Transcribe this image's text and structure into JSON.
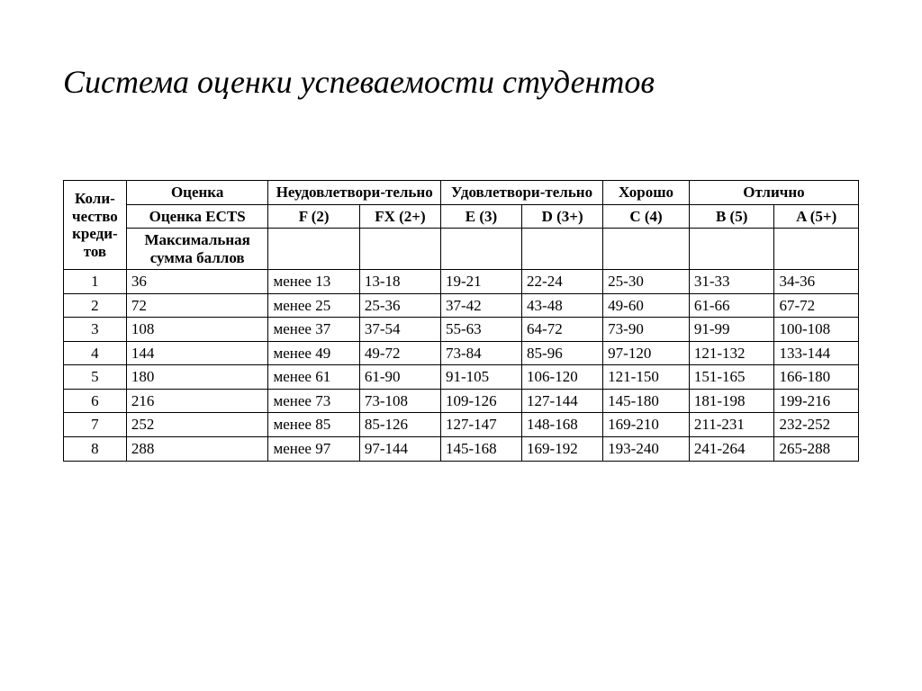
{
  "title": "Система оценки успеваемости студентов",
  "table": {
    "header": {
      "credits_label": "Коли-чество креди-тов",
      "grade_label": "Оценка",
      "unsatisfactory": "Неудовлетвори-тельно",
      "satisfactory": "Удовлетвори-тельно",
      "good": "Хорошо",
      "excellent": "Отлично",
      "ects_label": "Оценка ECTS",
      "f": "F (2)",
      "fx": "FX (2+)",
      "e": "E (3)",
      "d": "D (3+)",
      "c": "C (4)",
      "b": "B (5)",
      "a": "A (5+)",
      "max_points_label": "Максимальная сумма баллов"
    },
    "rows": [
      {
        "n": "1",
        "max": "36",
        "f": "менее 13",
        "fx": "13-18",
        "e": "19-21",
        "d": "22-24",
        "c": "25-30",
        "b": "31-33",
        "a": "34-36"
      },
      {
        "n": "2",
        "max": "72",
        "f": "менее 25",
        "fx": "25-36",
        "e": "37-42",
        "d": "43-48",
        "c": "49-60",
        "b": "61-66",
        "a": "67-72"
      },
      {
        "n": "3",
        "max": "108",
        "f": "менее 37",
        "fx": "37-54",
        "e": "55-63",
        "d": "64-72",
        "c": "73-90",
        "b": "91-99",
        "a": "100-108"
      },
      {
        "n": "4",
        "max": "144",
        "f": "менее 49",
        "fx": "49-72",
        "e": "73-84",
        "d": "85-96",
        "c": "97-120",
        "b": "121-132",
        "a": "133-144"
      },
      {
        "n": "5",
        "max": "180",
        "f": "менее 61",
        "fx": "61-90",
        "e": "91-105",
        "d": "106-120",
        "c": "121-150",
        "b": "151-165",
        "a": "166-180"
      },
      {
        "n": "6",
        "max": "216",
        "f": "менее 73",
        "fx": "73-108",
        "e": "109-126",
        "d": "127-144",
        "c": "145-180",
        "b": "181-198",
        "a": "199-216"
      },
      {
        "n": "7",
        "max": "252",
        "f": "менее 85",
        "fx": "85-126",
        "e": "127-147",
        "d": "148-168",
        "c": "169-210",
        "b": "211-231",
        "a": "232-252"
      },
      {
        "n": "8",
        "max": "288",
        "f": "менее 97",
        "fx": "97-144",
        "e": "145-168",
        "d": "169-192",
        "c": "193-240",
        "b": "241-264",
        "a": "265-288"
      }
    ]
  },
  "style": {
    "background_color": "#ffffff",
    "text_color": "#000000",
    "border_color": "#000000",
    "title_fontsize": 36,
    "cell_fontsize": 17,
    "font_family": "Times New Roman"
  }
}
